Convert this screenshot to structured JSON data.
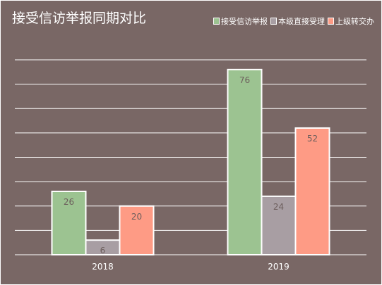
{
  "chart_data": {
    "type": "bar",
    "title": "接受信访举报同期对比",
    "categories": [
      "2018",
      "2019"
    ],
    "series": [
      {
        "name": "接受信访举报",
        "values": [
          26,
          76
        ],
        "color": "#9cc391"
      },
      {
        "name": "本级直接受理",
        "values": [
          6,
          24
        ],
        "color": "#a89ea3"
      },
      {
        "name": "上级转交办",
        "values": [
          20,
          52
        ],
        "color": "#fe9b85"
      }
    ],
    "ylim": [
      0,
      80
    ],
    "grid": true,
    "legend_position": "top-right",
    "data_labels": true
  },
  "colors": {
    "background": "#796765",
    "gridline": "#ffffff",
    "text": "#ffffff",
    "label_text": "#6c5e5c"
  }
}
